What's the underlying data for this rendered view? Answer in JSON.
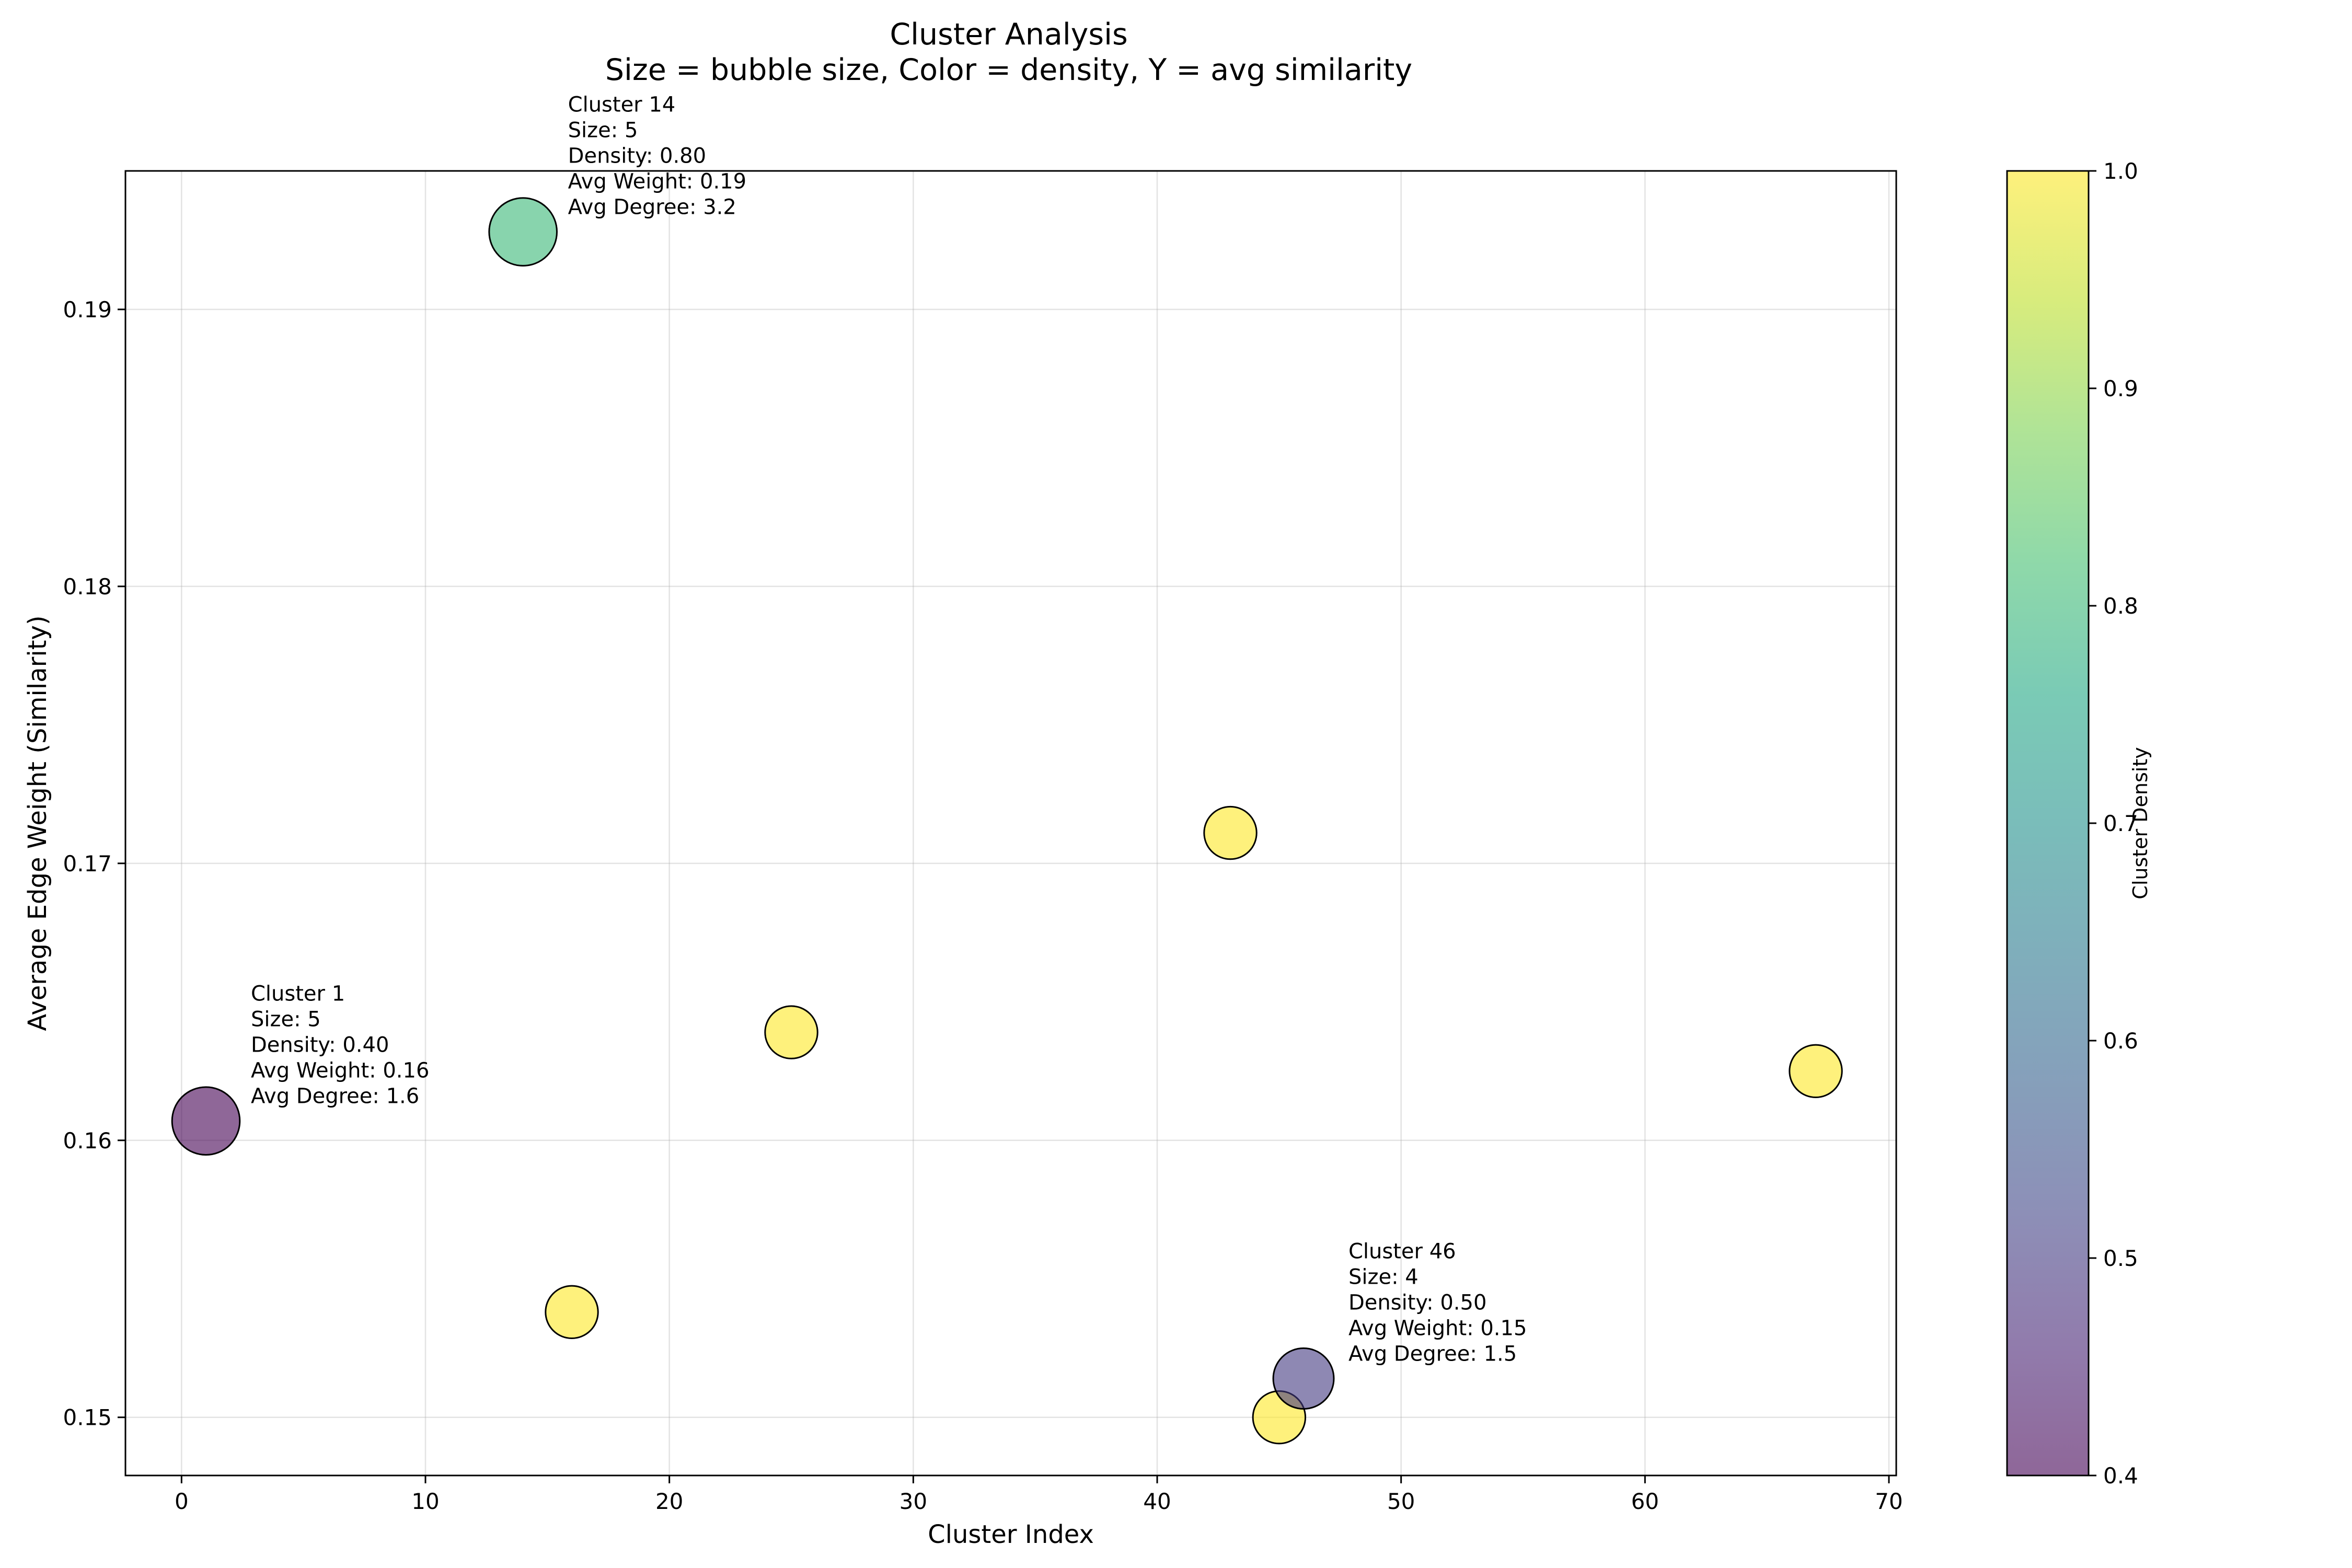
{
  "chart_data": {
    "type": "scatter",
    "title": "Cluster Analysis",
    "subtitle": "Size = bubble size, Color = density, Y = avg similarity",
    "xlabel": "Cluster Index",
    "ylabel": "Average Edge Weight (Similarity)",
    "xlim": [
      -2.3,
      70.3
    ],
    "ylim": [
      0.1479,
      0.195
    ],
    "xticks": [
      0,
      10,
      20,
      30,
      40,
      50,
      60,
      70
    ],
    "yticks": [
      0.15,
      0.16,
      0.17,
      0.18,
      0.19
    ],
    "grid": true,
    "colorbar": {
      "label": "Cluster Density",
      "range": [
        0.4,
        1.0
      ],
      "ticks": [
        0.4,
        0.5,
        0.6,
        0.7,
        0.8,
        0.9,
        1.0
      ],
      "colormap": "viridis"
    },
    "points": [
      {
        "x": 1,
        "y": 0.1607,
        "size": 5,
        "density": 0.4
      },
      {
        "x": 14,
        "y": 0.1928,
        "size": 5,
        "density": 0.8
      },
      {
        "x": 16,
        "y": 0.1538,
        "size": 3,
        "density": 1.0
      },
      {
        "x": 25,
        "y": 0.1639,
        "size": 3,
        "density": 1.0
      },
      {
        "x": 43,
        "y": 0.1711,
        "size": 3,
        "density": 1.0
      },
      {
        "x": 45,
        "y": 0.15,
        "size": 3,
        "density": 1.0
      },
      {
        "x": 46,
        "y": 0.1514,
        "size": 4,
        "density": 0.5
      },
      {
        "x": 67,
        "y": 0.1625,
        "size": 3,
        "density": 1.0
      }
    ],
    "annotations": [
      {
        "x": 1,
        "y": 0.1607,
        "lines": [
          "Cluster 1",
          "Size: 5",
          "Density: 0.40",
          "Avg Weight: 0.16",
          "Avg Degree: 1.6"
        ]
      },
      {
        "x": 14,
        "y": 0.1928,
        "lines": [
          "Cluster 14",
          "Size: 5",
          "Density: 0.80",
          "Avg Weight: 0.19",
          "Avg Degree: 3.2"
        ]
      },
      {
        "x": 46,
        "y": 0.1514,
        "lines": [
          "Cluster 46",
          "Size: 4",
          "Density: 0.50",
          "Avg Weight: 0.15",
          "Avg Degree: 1.5"
        ]
      }
    ]
  }
}
